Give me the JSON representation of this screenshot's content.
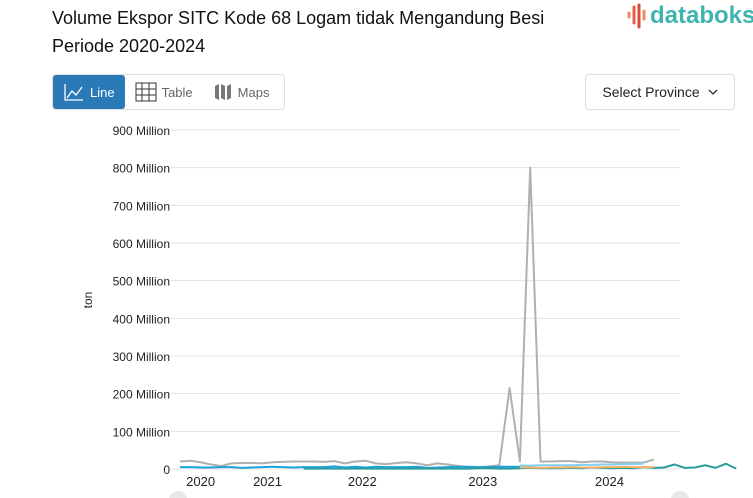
{
  "header": {
    "title": "Volume Ekspor SITC Kode 68 Logam tidak Mengandung Besi Periode 2020-2024",
    "logo": "databoks"
  },
  "tabs": [
    {
      "label": "Line",
      "icon": "line-chart-icon",
      "active": true
    },
    {
      "label": "Table",
      "icon": "table-grid-icon"
    },
    {
      "label": "Maps",
      "icon": "map-icon"
    }
  ],
  "select": {
    "label": "Select Province",
    "icon": "chevron-down-icon"
  },
  "colors": {
    "accent": "#2a7ab8",
    "brand": "#3fb4b0"
  },
  "chart_data": {
    "type": "line",
    "ylabel": "ton",
    "ylim": [
      0,
      900
    ],
    "y_unit": "Million",
    "y_ticks": [
      "0",
      "100 Million",
      "200 Million",
      "300 Million",
      "400 Million",
      "500 Million",
      "600 Million",
      "700 Million",
      "800 Million",
      "900 Million"
    ],
    "x_ticks": [
      {
        "label": "2020",
        "index": 2
      },
      {
        "label": "2021",
        "index": 8.5
      },
      {
        "label": "2022",
        "index": 17.7
      },
      {
        "label": "2023",
        "index": 29.4
      },
      {
        "label": "2024",
        "index": 41.7
      }
    ],
    "grid": true,
    "series": [
      {
        "color": "#b0b0b0",
        "start": 0,
        "values": [
          20,
          22,
          18,
          12,
          8,
          15,
          16,
          16,
          15,
          18,
          19,
          20,
          20,
          20,
          19,
          21,
          15,
          20,
          22,
          15,
          13,
          16,
          18,
          15,
          10,
          15,
          12,
          8,
          5,
          5,
          7,
          10,
          215,
          20,
          800,
          20,
          20,
          21,
          21,
          18,
          20,
          20,
          18,
          17,
          17,
          17,
          25
        ]
      },
      {
        "color": "#1aa3e0",
        "start": 0,
        "values": [
          5,
          5,
          4,
          4,
          5,
          5,
          3,
          4,
          5,
          6,
          5,
          4,
          5,
          5,
          5,
          7,
          4,
          6,
          4,
          6,
          5,
          5,
          5,
          6,
          3,
          4,
          5,
          6,
          6,
          5,
          5,
          6,
          6,
          6
        ]
      },
      {
        "color": "#7fd0f2",
        "start": 33,
        "values": [
          9,
          9,
          10,
          10,
          10,
          10,
          11,
          11,
          12,
          12,
          13,
          13,
          14
        ]
      },
      {
        "color": "#2a9d9a",
        "start": 12,
        "values": [
          1,
          1,
          1,
          1,
          1,
          1,
          1,
          1,
          1,
          1,
          1,
          1,
          1,
          1,
          1,
          1,
          1,
          2,
          2,
          1,
          1,
          2,
          3,
          2,
          2,
          2,
          3,
          2,
          4,
          3,
          2,
          3,
          2,
          5,
          3,
          4,
          12,
          3,
          4,
          10,
          3,
          14,
          1
        ]
      },
      {
        "color": "#f5b06a",
        "start": 33,
        "values": [
          4,
          4,
          3,
          4,
          4,
          5,
          4,
          4,
          5,
          5,
          6,
          5,
          5,
          5
        ]
      }
    ]
  }
}
